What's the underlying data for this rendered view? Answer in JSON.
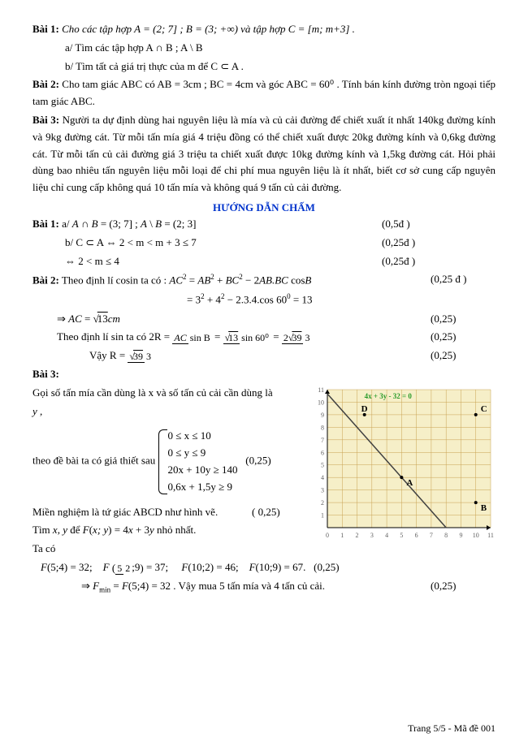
{
  "problems": {
    "p1_head": "Bài 1:",
    "p1_text": " Cho các tập hợp  A = (2; 7] ;  B = (3; +∞)  và tập hợp  C = [m; m+3] .",
    "p1_a": "a/ Tìm các tập hợp  A ∩ B ;   A \\ B",
    "p1_b": "b/ Tìm tất cả giá trị thực của m để  C ⊂ A .",
    "p2_head": "Bài 2:",
    "p2_text": " Cho tam giác ABC có  AB = 3cm ;  BC = 4cm   và góc  ABC = 60⁰ . Tính bán kính đường tròn ngoại tiếp tam giác ABC.",
    "p3_head": "Bài 3:",
    "p3_text": " Người ta dự định dùng hai nguyên liệu là mía và củ cải đường để chiết xuất ít nhất 140kg đường kính và 9kg đường cát. Từ mỗi tấn mía giá 4 triệu đồng có thể chiết xuất được 20kg đường kính và 0,6kg đường cát. Từ mỗi tấn củ cải đường giá 3 triệu ta chiết xuất được 10kg đường kính và 1,5kg đường cát. Hỏi phải dùng bao nhiêu tấn nguyên liệu mỗi loại để chi phí mua nguyên liệu là ít nhất, biết cơ sở cung cấp nguyên liệu chỉ cung cấp không quá 10 tấn mía và không quá 9 tấn củ cải đường."
  },
  "grade_title": "HƯỚNG DẪN CHẤM",
  "sol": {
    "s1a": "Bài 1: a/  A ∩ B = (3; 7] ;  A \\ B = (2; 3]",
    "s1a_pts": "(0,5đ )",
    "s1b1": "b/  C ⊂ A ⇔ 2 < m < m + 3 ≤ 7",
    "s1b1_pts": "(0,25đ )",
    "s1b2": "⇔ 2 < m ≤ 4",
    "s1b2_pts": "(0,25đ )",
    "s2_head": "Bài 2:",
    "s2_l1a": " Theo định lí cosin ta có : ",
    "s2_eq1": "AC² = AB² + BC² − 2AB.BC cosB",
    "s2_eq2": "= 3² + 4² − 2.3.4.cos 60⁰ = 13",
    "s2_pts1": "(0,25 đ )",
    "s2_ac_pre": "⇒ AC = ",
    "s2_ac_val": "√13 cm",
    "s2_pts2": "(0,25)",
    "s2_sin_pre": "Theo định lí sin ta có 2R = ",
    "s2_sin_frac1_top": "AC",
    "s2_sin_frac1_bot": "sin B",
    "s2_sin_eq": " = ",
    "s2_sin_frac2_top": "√13",
    "s2_sin_frac2_bot": "sin 60⁰",
    "s2_sin_frac3_top": "2√39",
    "s2_sin_frac3_bot": "3",
    "s2_pts3": "(0,25)",
    "s2_r_pre": "Vậy  R = ",
    "s2_r_top": "√39",
    "s2_r_bot": "3",
    "s2_pts4": "(0,25)",
    "s3_head": "Bài 3:",
    "s3_intro1": "Gọi số tấn mía cần dùng là x và số tấn củ cải cần dùng là",
    "s3_intro2": "y ,",
    "s3_given_pre": "theo đề bài ta có giả thiết sau  ",
    "s3_c1": "0 ≤ x ≤ 10",
    "s3_c2": "0 ≤ y ≤ 9",
    "s3_c3": "20x + 10y ≥ 140",
    "s3_c4": "0,6x + 1,5y ≥ 9",
    "s3_given_pts": "(0,25)",
    "s3_region": "Miền nghiệm là tứ giác ABCD như hình vẽ.",
    "s3_region_pts": "( 0,25)",
    "s3_find": "Tìm  x, y  để  F(x; y) = 4x + 3y  nhỏ nhất.",
    "s3_taco": "Ta có",
    "s3_vals": "F(5;4) = 32;    F(5/2; 9) = 37;     F(10;2) = 46;    F(10;9) = 67.   (0,25)",
    "s3_min": "⇒ F_min = F(5;4) = 32 . Vậy mua 5 tấn mía và 4 tấn củ cải.",
    "s3_min_pts": "(0,25)"
  },
  "graph": {
    "xlim": [
      0,
      11
    ],
    "ylim": [
      0,
      11
    ],
    "equation_label": "4x + 3y - 32 = 0",
    "label_color": "#2a9b2a",
    "grid_color": "#c8a050",
    "bg_color": "#f6efc8",
    "line_color": "#404040",
    "axis_color": "#000000",
    "points": {
      "A": [
        5,
        4
      ],
      "B": [
        10,
        2
      ],
      "C": [
        10,
        9
      ],
      "D": [
        2.5,
        9
      ]
    },
    "line_p1": [
      0,
      10.67
    ],
    "line_p2": [
      8,
      0
    ],
    "tick_fontsize": 8,
    "label_fontsize": 11
  },
  "footer": "Trang 5/5 - Mã đề 001"
}
